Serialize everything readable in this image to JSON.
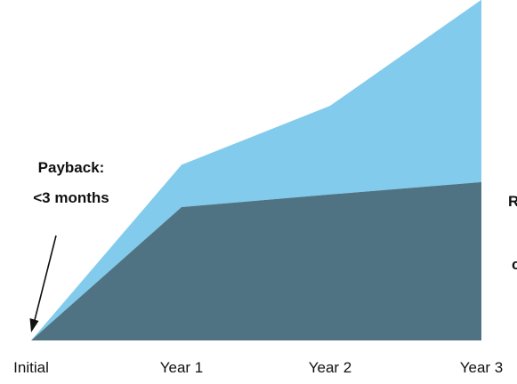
{
  "chart_data": {
    "type": "area",
    "stacked": true,
    "categories": [
      "Initial",
      "Year 1",
      "Year 2",
      "Year 3"
    ],
    "ylim": [
      0,
      100
    ],
    "grid": false,
    "series": [
      {
        "values": [
          0,
          40.0,
          43.8,
          47.5
        ],
        "color": "#4F7382"
      },
      {
        "values": [
          0,
          12.7,
          26.6,
          54.7
        ],
        "color": "#82CBEC"
      }
    ],
    "annotations": [
      {
        "lines": [
          "Payback:",
          "<3 months"
        ],
        "points_to": "Initial"
      }
    ],
    "clipped_labels": [
      "R",
      "c"
    ]
  }
}
